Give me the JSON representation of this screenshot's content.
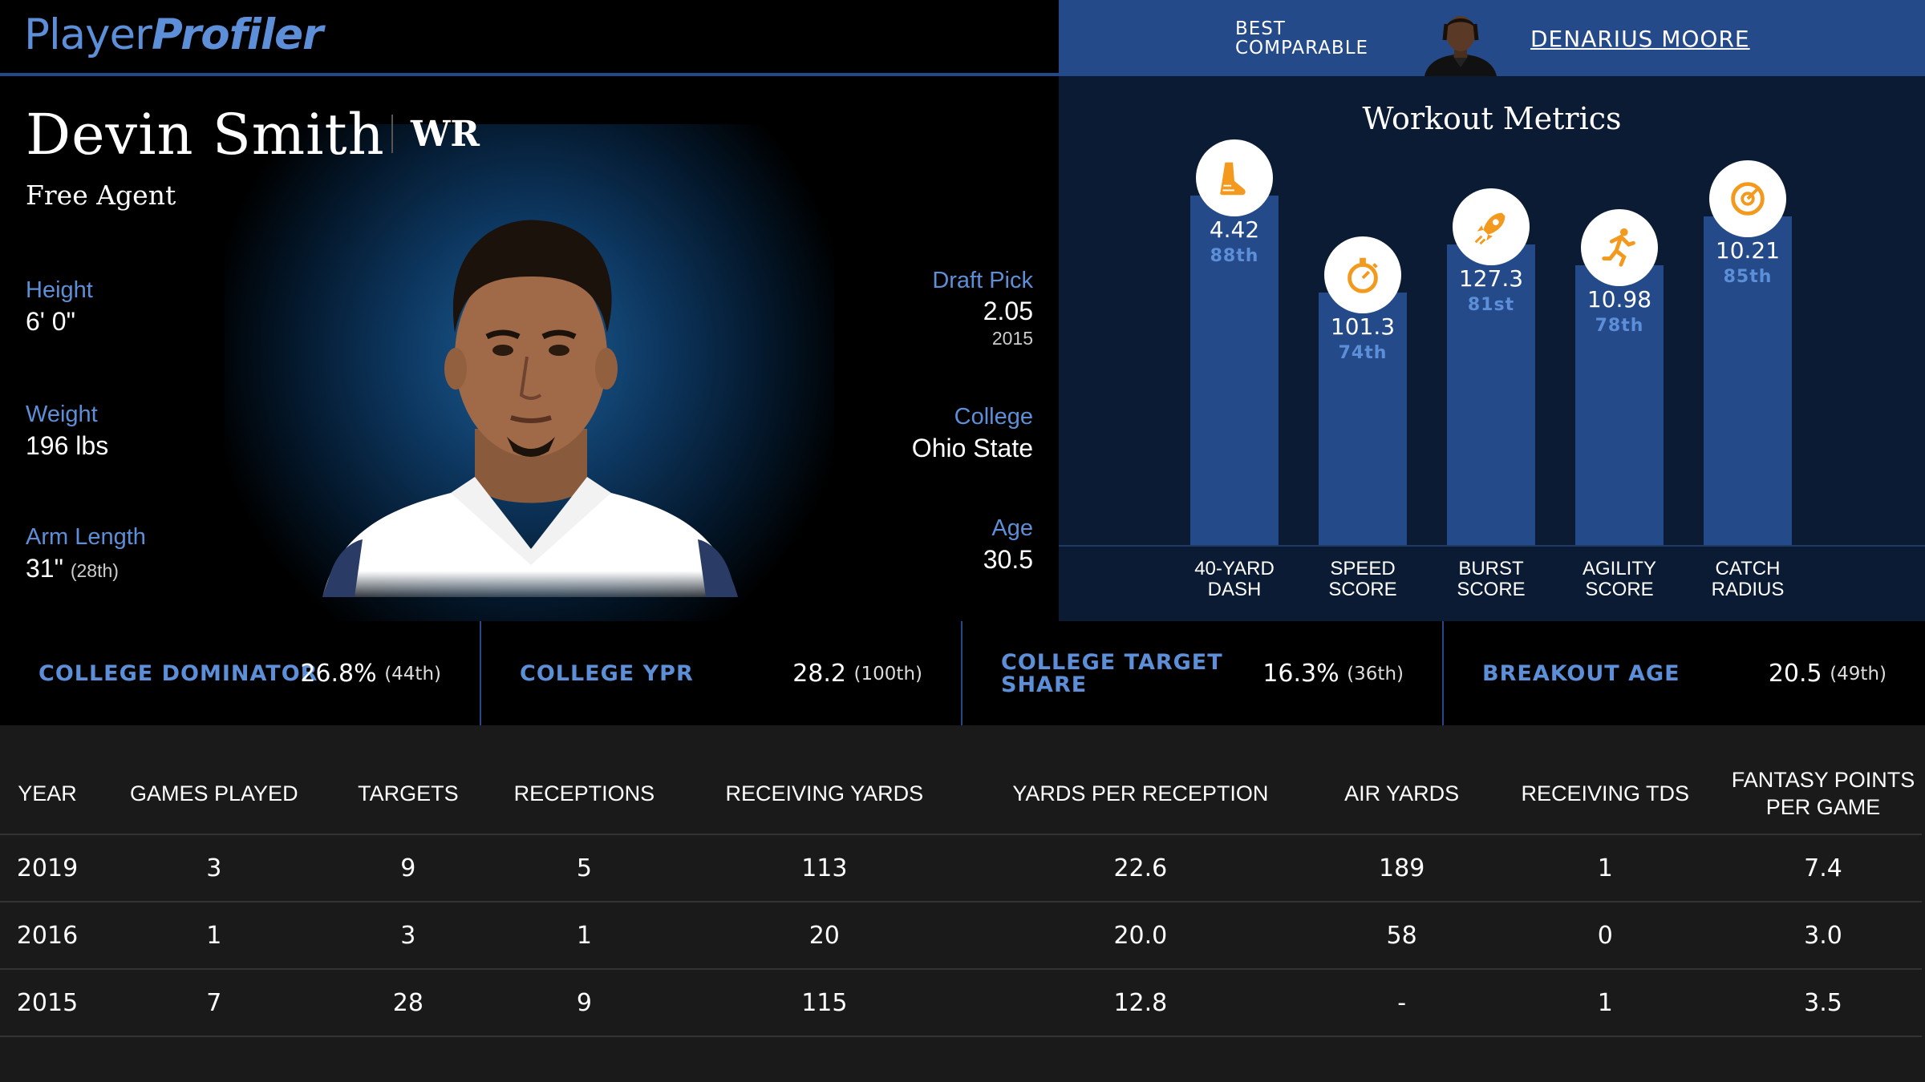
{
  "header": {
    "logo_part1": "Player",
    "logo_part2": "Profiler",
    "best_label_line1": "BEST",
    "best_label_line2": "COMPARABLE",
    "best_name": "DENARIUS MOORE"
  },
  "player": {
    "name": "Devin Smith",
    "position": "WR",
    "team": "Free Agent",
    "height_label": "Height",
    "height": "6' 0\"",
    "weight_label": "Weight",
    "weight": "196 lbs",
    "arm_label": "Arm Length",
    "arm": "31\"",
    "arm_pct": "(28th)",
    "draft_label": "Draft Pick",
    "draft_pick": "2.05",
    "draft_year": "2015",
    "college_label": "College",
    "college": "Ohio State",
    "age_label": "Age",
    "age": "30.5"
  },
  "workout": {
    "title": "Workout Metrics",
    "metrics": [
      {
        "value": "4.42",
        "pct": "88th",
        "label1": "40-YARD",
        "label2": "DASH",
        "pct_num": 88,
        "icon": "shoe-icon"
      },
      {
        "value": "101.3",
        "pct": "74th",
        "label1": "SPEED",
        "label2": "SCORE",
        "pct_num": 74,
        "icon": "stopwatch-icon"
      },
      {
        "value": "127.3",
        "pct": "81st",
        "label1": "BURST",
        "label2": "SCORE",
        "pct_num": 81,
        "icon": "rocket-icon"
      },
      {
        "value": "10.98",
        "pct": "78th",
        "label1": "AGILITY",
        "label2": "SCORE",
        "pct_num": 78,
        "icon": "runner-icon"
      },
      {
        "value": "10.21",
        "pct": "85th",
        "label1": "CATCH",
        "label2": "RADIUS",
        "pct_num": 85,
        "icon": "target-icon"
      }
    ]
  },
  "college": [
    {
      "label": "College Dominator",
      "value": "26.8%",
      "pct": "(44th)"
    },
    {
      "label": "College YPR",
      "value": "28.2",
      "pct": "(100th)"
    },
    {
      "label": "College Target Share",
      "value": "16.3%",
      "pct": "(36th)"
    },
    {
      "label": "Breakout Age",
      "value": "20.5",
      "pct": "(49th)"
    }
  ],
  "table": {
    "headers": [
      "YEAR",
      "GAMES PLAYED",
      "TARGETS",
      "RECEPTIONS",
      "RECEIVING YARDS",
      "YARDS PER RECEPTION",
      "AIR YARDS",
      "RECEIVING TDS",
      "FANTASY POINTS PER GAME"
    ],
    "rows": [
      [
        "2019",
        "3",
        "9",
        "5",
        "113",
        "22.6",
        "189",
        "1",
        "7.4"
      ],
      [
        "2016",
        "1",
        "3",
        "1",
        "20",
        "20.0",
        "58",
        "0",
        "3.0"
      ],
      [
        "2015",
        "7",
        "28",
        "9",
        "115",
        "12.8",
        "-",
        "1",
        "3.5"
      ]
    ]
  },
  "colors": {
    "accent_blue": "#5d8fd8",
    "bar_blue": "#244a8a",
    "icon_orange": "#f39a1e"
  }
}
